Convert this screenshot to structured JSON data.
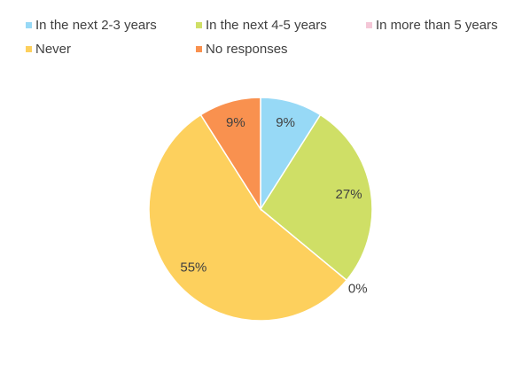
{
  "chart_data": {
    "type": "pie",
    "categories": [
      "In the next 2-3 years",
      "In the next 4-5 years",
      "In more than 5 years",
      "Never",
      "No responses"
    ],
    "values": [
      9,
      27,
      0,
      55,
      9
    ],
    "value_labels": [
      "9%",
      "27%",
      "0%",
      "55%",
      "9%"
    ],
    "colors": [
      "#97d9f6",
      "#cfdf66",
      "#f4c7d7",
      "#fdd05d",
      "#f9914f"
    ],
    "legend": "top"
  }
}
